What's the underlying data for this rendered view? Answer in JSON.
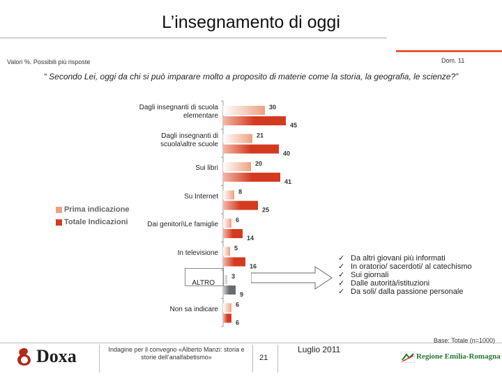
{
  "header": {
    "title": "L’insegnamento di oggi",
    "subtitle": "Valori %. Possibili più risposte",
    "dom": "Dom. 11",
    "question": "“ Secondo Lei, oggi da chi si può imparare molto a proposito di materie come la storia, la geografia, le scienze?”"
  },
  "chart_data": {
    "type": "bar",
    "orientation": "horizontal",
    "categories": [
      "Dagli insegnanti di scuola elementare",
      "Dagli insegnanti di scuola\\altre scuole",
      "Sui libri",
      "Su Internet",
      "Dai genitori\\Le famiglie",
      "In televisione",
      "ALTRO",
      "Non sa indicare"
    ],
    "series": [
      {
        "name": "Prima indicazione",
        "values": [
          30,
          21,
          20,
          8,
          6,
          5,
          3,
          6
        ]
      },
      {
        "name": "Totale Indicazioni",
        "values": [
          45,
          40,
          41,
          25,
          14,
          16,
          9,
          6
        ]
      }
    ],
    "xlim": [
      0,
      50
    ],
    "grid": false,
    "legend": "left",
    "colors": {
      "prima": "#f0a080",
      "totale": "#d43a1f",
      "altro_prima": "#c8c8c8",
      "altro_totale": "#6a6a6a"
    }
  },
  "legend": {
    "prima": "Prima indicazione",
    "totale": "Totale Indicazioni"
  },
  "altro_details": [
    "Da altri giovani più informati",
    "In oratorio/ sacerdoti/ al catechismo",
    "Sui giornali",
    "Dalle autorità/istituzioni",
    "Da soli/ dalla passione personale"
  ],
  "footer": {
    "base": "Base: Totale (n=1000)",
    "logo": "Doxa",
    "note": "Indagine per il convegno «Alberto Manzi: storia e storie dell’analfabetismo»",
    "page": "21",
    "date": "Luglio 2011",
    "region": "Regione Emilia-Romagna"
  }
}
